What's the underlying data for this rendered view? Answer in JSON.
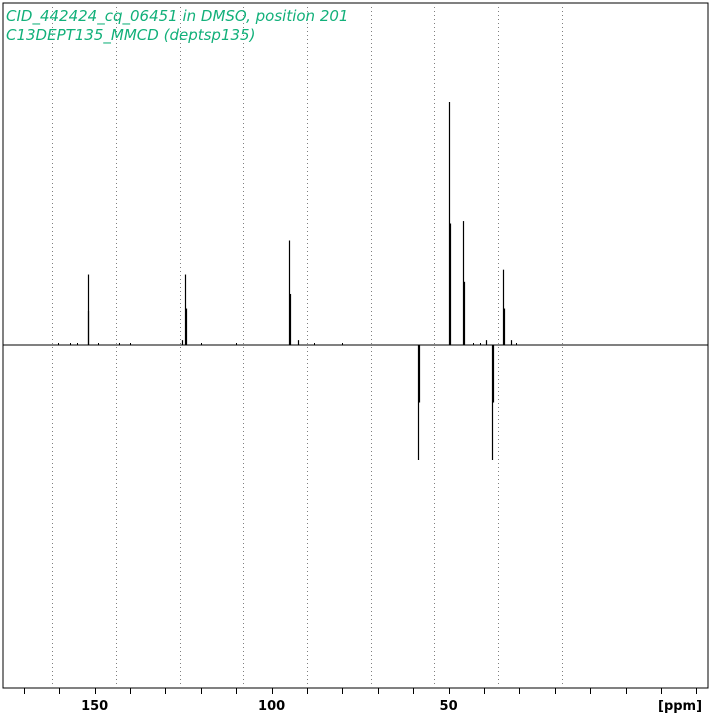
{
  "colors": {
    "title": "#12b07a",
    "frame": "#000000",
    "grid": "#7f7f7f",
    "trace": "#000000"
  },
  "header": {
    "line1": "CID_442424_cq_06451 in DMSO, position 201",
    "line2": "C13DEPT135_MMCD (deptsp135)"
  },
  "chart_data": {
    "type": "line",
    "title": "CID_442424_cq_06451 in DMSO, position 201",
    "subtitle": "C13DEPT135_MMCD (deptsp135)",
    "xlabel": "[ppm]",
    "ylabel": "",
    "x_reversed": true,
    "xlim": [
      175.9,
      -23.3
    ],
    "ylim": [
      -1.45,
      1.05
    ],
    "x_ticks": [
      150,
      100,
      50
    ],
    "x_tick_labels": [
      "150",
      "100",
      "50"
    ],
    "grid": true,
    "grid_style": "dotted-vertical",
    "grid_x": [
      162,
      144,
      126,
      108,
      90,
      72,
      54,
      36,
      18
    ],
    "baseline": 0,
    "series": [
      {
        "peaks": [
          {
            "ppm": 152.0,
            "intensity": 0.29
          },
          {
            "ppm": 151.8,
            "intensity": 0.14
          },
          {
            "ppm": 124.5,
            "intensity": 0.29
          },
          {
            "ppm": 124.3,
            "intensity": 0.15
          },
          {
            "ppm": 125.2,
            "intensity": 0.02
          },
          {
            "ppm": 95.0,
            "intensity": 0.43
          },
          {
            "ppm": 94.8,
            "intensity": 0.21
          },
          {
            "ppm": 92.6,
            "intensity": 0.02
          },
          {
            "ppm": 58.7,
            "intensity": -0.48
          },
          {
            "ppm": 58.4,
            "intensity": -0.24
          },
          {
            "ppm": 49.8,
            "intensity": 1.0
          },
          {
            "ppm": 49.6,
            "intensity": 0.5
          },
          {
            "ppm": 45.9,
            "intensity": 0.51
          },
          {
            "ppm": 45.7,
            "intensity": 0.26
          },
          {
            "ppm": 39.3,
            "intensity": 0.02
          },
          {
            "ppm": 37.6,
            "intensity": -0.48
          },
          {
            "ppm": 37.4,
            "intensity": -0.24
          },
          {
            "ppm": 34.5,
            "intensity": 0.31
          },
          {
            "ppm": 34.3,
            "intensity": 0.15
          },
          {
            "ppm": 32.4,
            "intensity": 0.02
          }
        ]
      }
    ]
  }
}
